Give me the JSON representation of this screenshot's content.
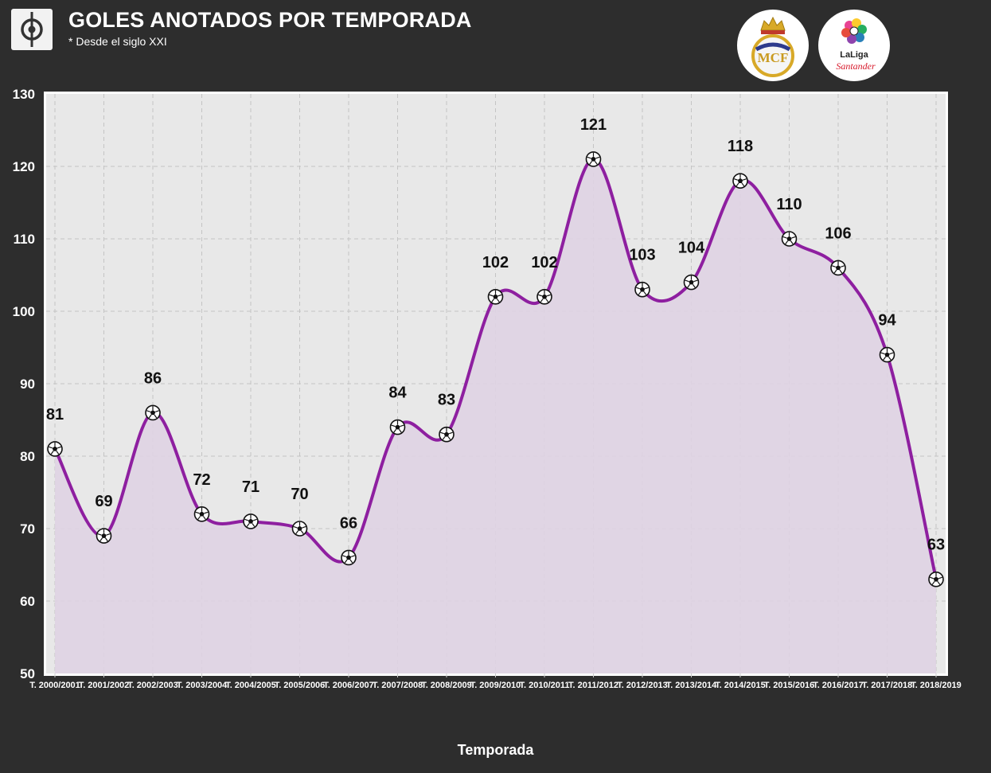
{
  "header": {
    "title": "GOLES ANOTADOS POR TEMPORADA",
    "subtitle": "* Desde el siglo XXI",
    "brand_icon": "pitch-icon",
    "badges": [
      {
        "name": "real-madrid-crest",
        "text": "MCF"
      },
      {
        "name": "laliga-santander-logo",
        "text": "LaLiga Santander"
      }
    ]
  },
  "colors": {
    "background": "#2d2d2d",
    "plot_background": "#e8e8e8",
    "line": "#8e1fa0",
    "area": "#dfd3e3",
    "text": "#ffffff",
    "data_label": "#111111"
  },
  "chart_data": {
    "type": "line",
    "title": "GOLES ANOTADOS POR TEMPORADA",
    "subtitle": "* Desde el siglo XXI",
    "xlabel": "Temporada",
    "ylabel": "",
    "categories": [
      "T. 2000/2001",
      "T. 2001/2002",
      "T. 2002/2003",
      "T. 2003/2004",
      "T. 2004/2005",
      "T. 2005/2006",
      "T. 2006/2007",
      "T. 2007/2008",
      "T. 2008/2009",
      "T. 2009/2010",
      "T. 2010/2011",
      "T. 2011/2012",
      "T. 2012/2013",
      "T. 2013/2014",
      "T. 2014/2015",
      "T. 2015/2016",
      "T. 2016/2017",
      "T. 2017/2018",
      "T. 2018/2019"
    ],
    "values": [
      81,
      69,
      86,
      72,
      71,
      70,
      66,
      84,
      83,
      102,
      102,
      121,
      103,
      104,
      118,
      110,
      106,
      94,
      63
    ],
    "ylim": [
      50,
      130
    ],
    "yticks": [
      50,
      60,
      70,
      80,
      90,
      100,
      110,
      120,
      130
    ],
    "grid": true,
    "marker": "soccer-ball",
    "smooth": true,
    "area_fill": true
  }
}
